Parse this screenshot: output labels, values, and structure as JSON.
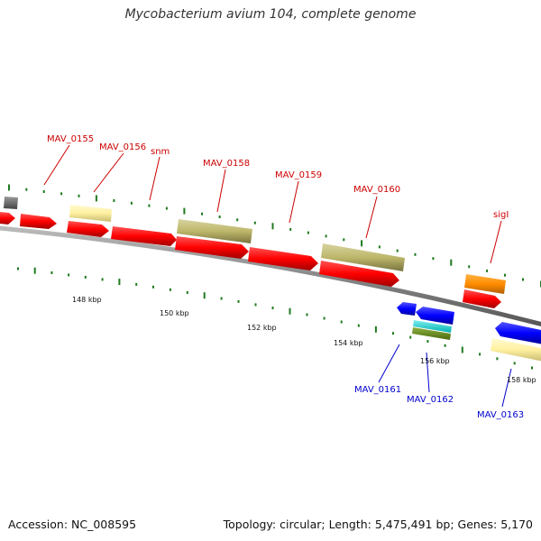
{
  "title": "Mycobacterium avium 104, complete genome",
  "footer": {
    "accession": "Accession: NC_008595",
    "summary": "Topology: circular; Length: 5,475,491 bp; Genes: 5,170"
  },
  "colors": {
    "backbone": "#8c8c8c",
    "tick": "#1f7a1f",
    "forward_label": "#cc0000",
    "reverse_label": "#0000cc",
    "cds": "#ff0000",
    "rna": "#fff0a0",
    "khaki": "#bdb76b",
    "orange": "#ff8c00",
    "blue": "#0000ff",
    "cyan": "#00d0d0",
    "olive": "#6b8e23",
    "gray": "#707070"
  },
  "scale_labels": [
    "148 kbp",
    "150 kbp",
    "152 kbp",
    "154 kbp",
    "156 kbp",
    "158 kbp"
  ],
  "forward_labels": [
    "MAV_0155",
    "MAV_0156",
    "snm",
    "MAV_0158",
    "MAV_0159",
    "MAV_0160",
    "sigI"
  ],
  "reverse_labels": [
    "MAV_0161",
    "MAV_0162",
    "MAV_0163"
  ]
}
